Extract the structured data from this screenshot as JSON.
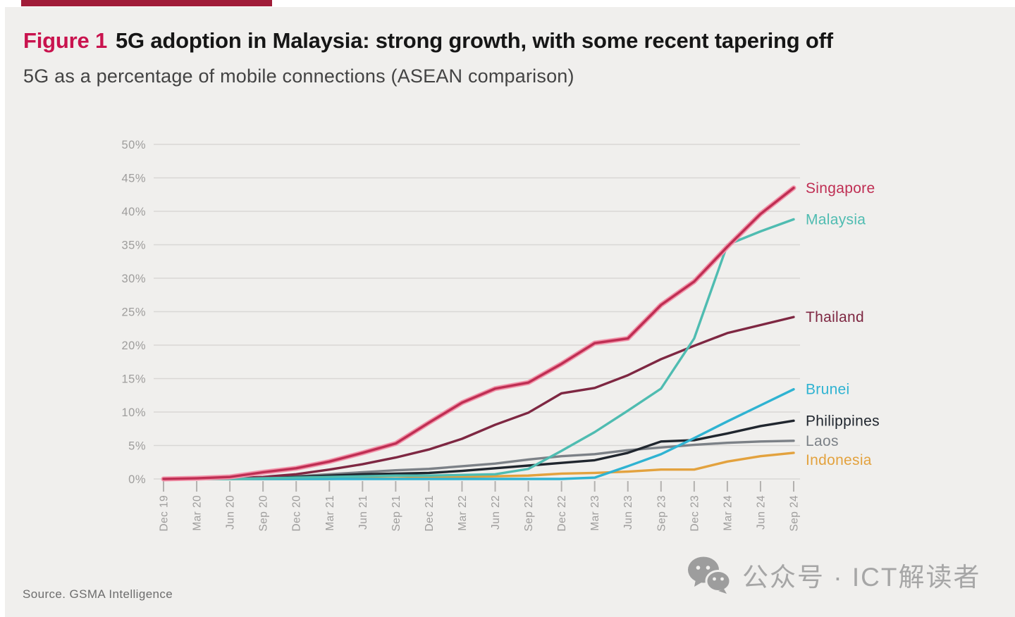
{
  "figure": {
    "label": "Figure 1",
    "title": "5G adoption in Malaysia: strong growth, with some recent tapering off",
    "subtitle": "5G as a percentage of mobile connections (ASEAN comparison)",
    "source": "Source. GSMA Intelligence"
  },
  "footer": {
    "wechat_text": "公众号 · ICT解读者"
  },
  "colors": {
    "accent_bar": "#a01c38",
    "figure_label": "#c9134e",
    "panel_bg": "#f0efed",
    "gridline": "#d9d7d5",
    "axis_tick": "#b3b1af",
    "axis_text": "#9e9d9c"
  },
  "chart_data": {
    "type": "line",
    "title": "5G adoption in Malaysia: strong growth, with some recent tapering off",
    "subtitle": "5G as a percentage of mobile connections (ASEAN comparison)",
    "xlabel": "",
    "ylabel": "5G as a percentage of mobile connections",
    "ylim": [
      0,
      50
    ],
    "grid": "horizontal",
    "legend_position": "right-end-labels",
    "y_ticks": [
      "0%",
      "5%",
      "10%",
      "15%",
      "20%",
      "25%",
      "30%",
      "35%",
      "40%",
      "45%",
      "50%"
    ],
    "x_labels": [
      "Dec 19",
      "Mar 20",
      "Jun 20",
      "Sep 20",
      "Dec 20",
      "Mar 21",
      "Jun 21",
      "Sep 21",
      "Dec 21",
      "Mar 22",
      "Jun 22",
      "Sep 22",
      "Dec 22",
      "Mar 23",
      "Jun 23",
      "Sep 23",
      "Dec 23",
      "Mar 24",
      "Jun 24",
      "Sep 24"
    ],
    "series": [
      {
        "name": "Singapore",
        "color": "#bf2e53",
        "halo": "#f295ab",
        "values": [
          0,
          0.1,
          0.3,
          1.0,
          1.6,
          2.6,
          3.9,
          5.3,
          8.4,
          11.4,
          13.5,
          14.4,
          17.2,
          20.3,
          21.0,
          26.0,
          29.5,
          34.7,
          39.6,
          43.5
        ]
      },
      {
        "name": "Malaysia",
        "color": "#4fbcb1",
        "halo": null,
        "values": [
          0,
          0,
          0,
          0.1,
          0.2,
          0.3,
          0.4,
          0.5,
          0.5,
          0.6,
          0.7,
          1.5,
          4.2,
          7.0,
          10.2,
          13.5,
          21.0,
          35.0,
          37.0,
          38.8
        ]
      },
      {
        "name": "Thailand",
        "color": "#7e2742",
        "halo": null,
        "values": [
          0,
          0,
          0.1,
          0.3,
          0.7,
          1.4,
          2.2,
          3.2,
          4.4,
          6.0,
          8.1,
          9.9,
          12.8,
          13.6,
          15.5,
          17.9,
          19.9,
          21.8,
          23.0,
          24.2
        ]
      },
      {
        "name": "Brunei",
        "color": "#2fb3d2",
        "halo": null,
        "values": [
          0,
          0,
          0,
          0,
          0,
          0,
          0,
          0,
          0,
          0,
          0,
          0,
          0,
          0.2,
          1.9,
          3.7,
          6.1,
          8.6,
          11.0,
          13.4
        ]
      },
      {
        "name": "Philippines",
        "color": "#20262e",
        "halo": null,
        "values": [
          0,
          0,
          0.1,
          0.1,
          0.3,
          0.5,
          0.7,
          0.8,
          0.9,
          1.2,
          1.6,
          2.0,
          2.4,
          2.8,
          3.9,
          5.6,
          5.8,
          6.8,
          7.9,
          8.7
        ]
      },
      {
        "name": "Laos",
        "color": "#7c8187",
        "halo": null,
        "values": [
          0,
          0,
          0.1,
          0.2,
          0.4,
          0.7,
          1.0,
          1.3,
          1.5,
          1.9,
          2.3,
          2.9,
          3.4,
          3.7,
          4.3,
          4.7,
          5.1,
          5.4,
          5.6,
          5.7
        ]
      },
      {
        "name": "Indonesia",
        "color": "#e3a23e",
        "halo": null,
        "values": [
          0,
          0,
          0,
          0,
          0,
          0,
          0.1,
          0.1,
          0.2,
          0.3,
          0.4,
          0.5,
          0.8,
          0.9,
          1.1,
          1.4,
          1.4,
          2.6,
          3.4,
          3.9
        ]
      }
    ]
  }
}
